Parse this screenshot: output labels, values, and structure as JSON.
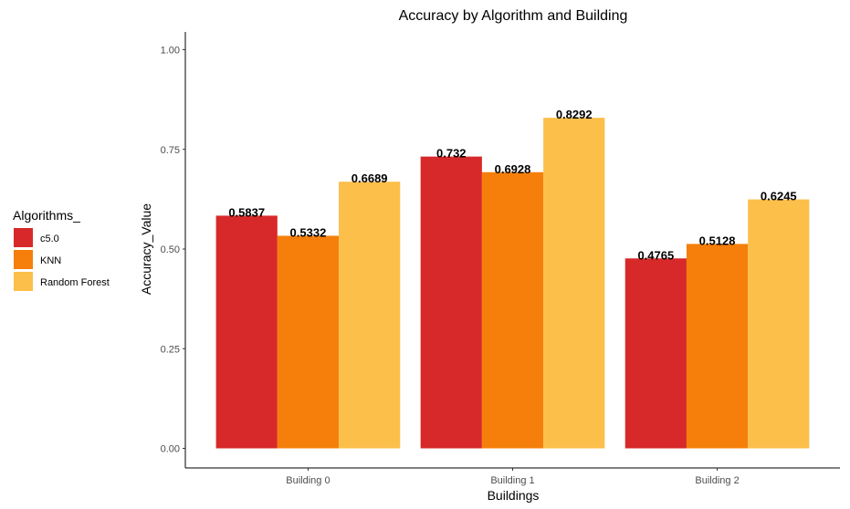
{
  "chart_data": {
    "type": "bar",
    "title": "Accuracy by Algorithm and Building",
    "xlabel": "Buildings",
    "ylabel": "Accuracy_Value",
    "categories": [
      "Building 0",
      "Building 1",
      "Building 2"
    ],
    "series": [
      {
        "name": "c5.0",
        "values": [
          0.5837,
          0.732,
          0.4765
        ],
        "labels": [
          "0.5837",
          "0.732",
          "0.4765"
        ],
        "color": "#d7292a"
      },
      {
        "name": "KNN",
        "values": [
          0.5332,
          0.6928,
          0.5128
        ],
        "labels": [
          "0.5332",
          "0.6928",
          "0.5128"
        ],
        "color": "#f57f0a"
      },
      {
        "name": "Random Forest",
        "values": [
          0.6689,
          0.8292,
          0.6245
        ],
        "labels": [
          "0.6689",
          "0.8292",
          "0.6245"
        ],
        "color": "#fcbf4a"
      }
    ],
    "ylim": [
      0,
      1
    ],
    "yticks": [
      0,
      0.25,
      0.5,
      0.75,
      1
    ],
    "ytick_labels": [
      "0.00",
      "0.25",
      "0.50",
      "0.75",
      "1.00"
    ],
    "grid": false,
    "legend": {
      "title": "Algorithms_",
      "position": "left"
    }
  }
}
